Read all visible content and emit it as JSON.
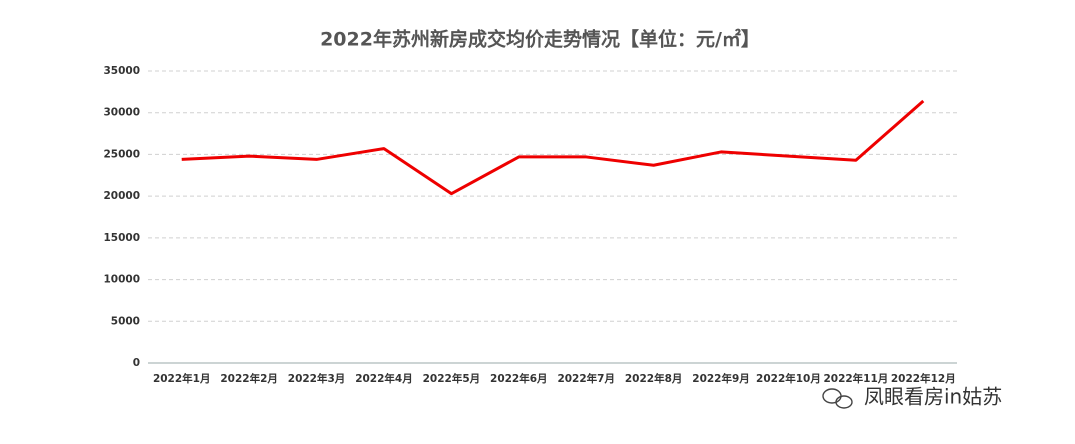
{
  "chart_data": {
    "type": "line",
    "title": "2022年苏州新房成交均价走势情况【单位：元/㎡】",
    "categories": [
      "2022年1月",
      "2022年2月",
      "2022年3月",
      "2022年4月",
      "2022年5月",
      "2022年6月",
      "2022年7月",
      "2022年8月",
      "2022年9月",
      "2022年10月",
      "2022年11月",
      "2022年12月"
    ],
    "series": [
      {
        "color": "#ee0000",
        "values": [
          24400,
          24800,
          24400,
          25700,
          20300,
          24700,
          24700,
          23700,
          25300,
          24800,
          24300,
          31400
        ]
      }
    ],
    "ylim": [
      0,
      35000
    ],
    "yticks": [
      0,
      5000,
      10000,
      15000,
      20000,
      25000,
      30000,
      35000
    ],
    "grid": true
  },
  "watermark": "凤眼看房in姑苏"
}
